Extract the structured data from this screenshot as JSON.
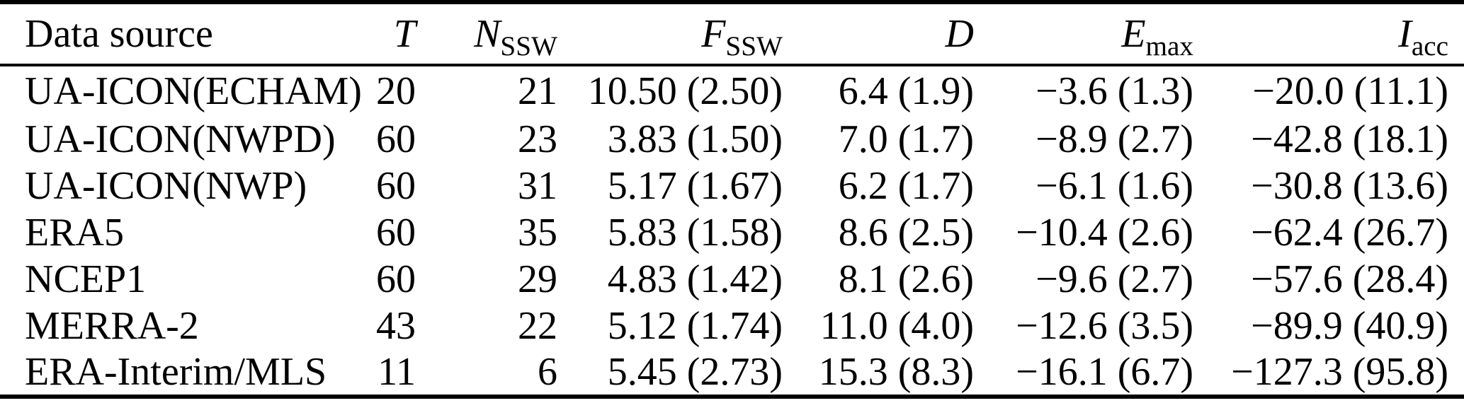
{
  "table": {
    "columns": [
      {
        "name": "data-source",
        "label": "Data source",
        "italic": false,
        "sub": ""
      },
      {
        "name": "T",
        "label": "T",
        "italic": true,
        "sub": ""
      },
      {
        "name": "N-SSW",
        "label": "N",
        "italic": true,
        "sub": "SSW"
      },
      {
        "name": "F-SSW",
        "label": "F",
        "italic": true,
        "sub": "SSW"
      },
      {
        "name": "D",
        "label": "D",
        "italic": true,
        "sub": ""
      },
      {
        "name": "E-max",
        "label": "E",
        "italic": true,
        "sub": "max"
      },
      {
        "name": "I-acc",
        "label": "I",
        "italic": true,
        "sub": "acc"
      }
    ],
    "rows": [
      [
        "UA-ICON(ECHAM)",
        "20",
        "21",
        "10.50 (2.50)",
        "6.4 (1.9)",
        "−3.6 (1.3)",
        "−20.0 (11.1)"
      ],
      [
        "UA-ICON(NWPD)",
        "60",
        "23",
        "3.83 (1.50)",
        "7.0 (1.7)",
        "−8.9 (2.7)",
        "−42.8 (18.1)"
      ],
      [
        "UA-ICON(NWP)",
        "60",
        "31",
        "5.17 (1.67)",
        "6.2 (1.7)",
        "−6.1 (1.6)",
        "−30.8 (13.6)"
      ],
      [
        "ERA5",
        "60",
        "35",
        "5.83 (1.58)",
        "8.6 (2.5)",
        "−10.4 (2.6)",
        "−62.4 (26.7)"
      ],
      [
        "NCEP1",
        "60",
        "29",
        "4.83 (1.42)",
        "8.1 (2.6)",
        "−9.6 (2.7)",
        "−57.6 (28.4)"
      ],
      [
        "MERRA-2",
        "43",
        "22",
        "5.12 (1.74)",
        "11.0 (4.0)",
        "−12.6 (3.5)",
        "−89.9 (40.9)"
      ],
      [
        "ERA-Interim/MLS",
        "11",
        "6",
        "5.45 (2.73)",
        "15.3 (8.3)",
        "−16.1 (6.7)",
        "−127.3 (95.8)"
      ]
    ]
  }
}
